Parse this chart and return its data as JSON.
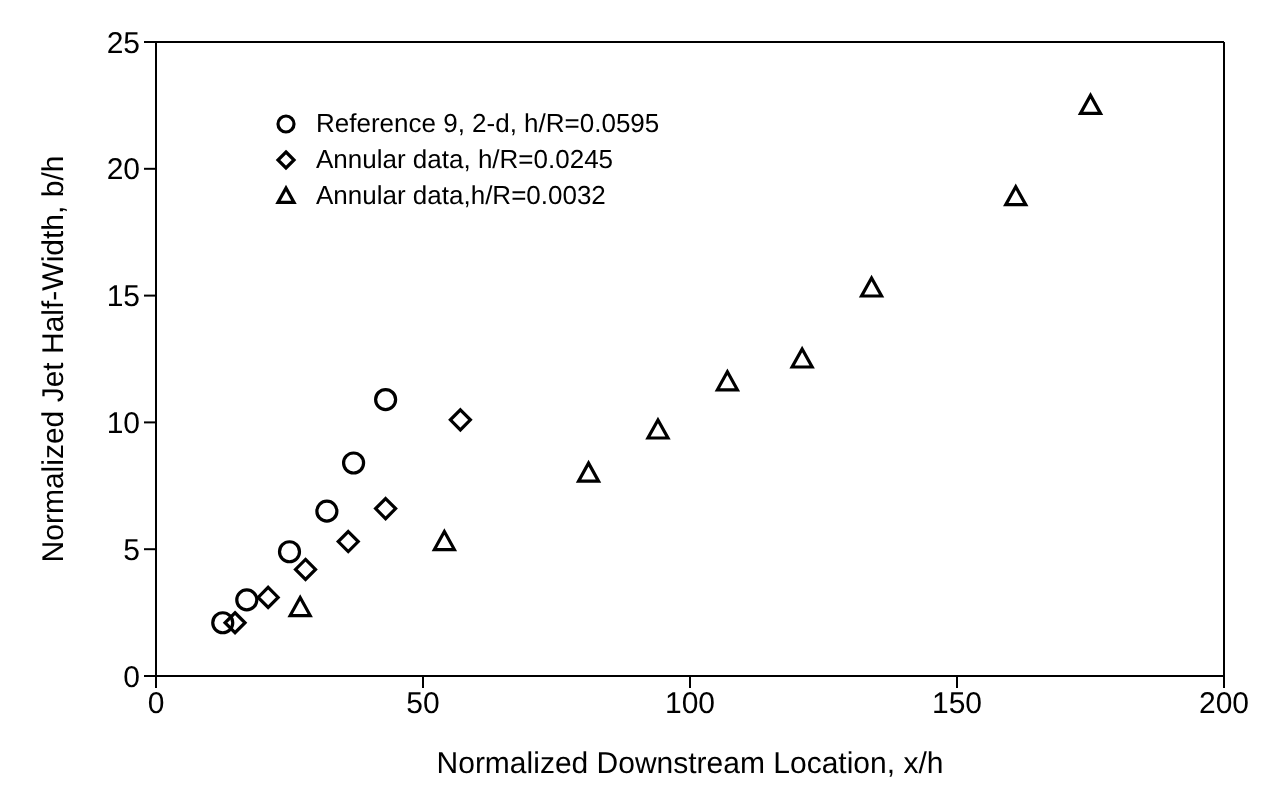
{
  "chart_data": {
    "type": "scatter",
    "xlabel": "Normalized Downstream Location, x/h",
    "ylabel": "Normalized Jet Half-Width, b/h",
    "xlim": [
      0,
      200
    ],
    "xticks": [
      0,
      50,
      100,
      150,
      200
    ],
    "ylim": [
      0,
      25
    ],
    "yticks": [
      0,
      5,
      10,
      15,
      20,
      25
    ],
    "grid": false,
    "legend": "top left",
    "series": [
      {
        "name": "Reference 9, 2-d, h/R=0.0595",
        "color": "#000000",
        "marker": "circle",
        "x": [
          12.5,
          17,
          25,
          32,
          37,
          43
        ],
        "values": [
          2.1,
          3.0,
          4.9,
          6.5,
          8.4,
          10.9
        ]
      },
      {
        "name": "Annular data, h/R=0.0245",
        "color": "#000000",
        "marker": "diamond",
        "x": [
          14.8,
          21,
          28,
          36,
          43,
          57
        ],
        "values": [
          2.1,
          3.1,
          4.2,
          5.3,
          6.6,
          10.1
        ]
      },
      {
        "name": "Annular data,h/R=0.0032",
        "color": "#000000",
        "marker": "triangle",
        "x": [
          27,
          54,
          81,
          94,
          107,
          121,
          134,
          161,
          175
        ],
        "values": [
          2.7,
          5.3,
          8.0,
          9.7,
          11.6,
          12.5,
          15.3,
          18.9,
          22.5
        ]
      }
    ]
  }
}
